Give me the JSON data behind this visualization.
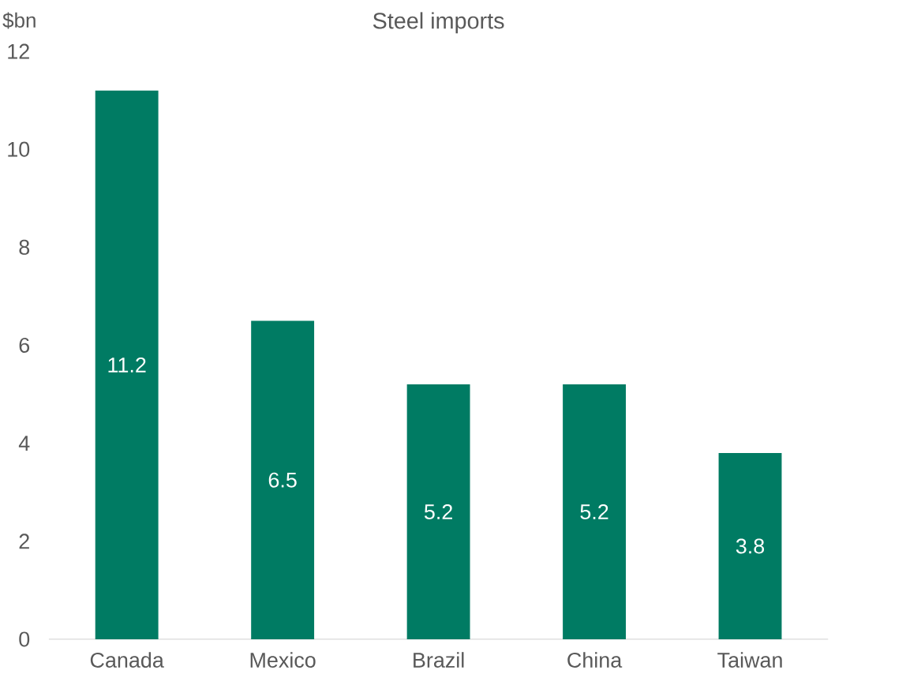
{
  "chart_data": {
    "type": "bar",
    "title": "Steel imports",
    "ylabel": "$bn",
    "categories": [
      "Canada",
      "Mexico",
      "Brazil",
      "China",
      "Taiwan"
    ],
    "values": [
      11.2,
      6.5,
      5.2,
      5.2,
      3.8
    ],
    "color": "#007b63",
    "ylim": [
      0,
      12
    ],
    "yticks": [
      0,
      2,
      4,
      6,
      8,
      10,
      12
    ],
    "grid": false,
    "data_labels": true
  }
}
